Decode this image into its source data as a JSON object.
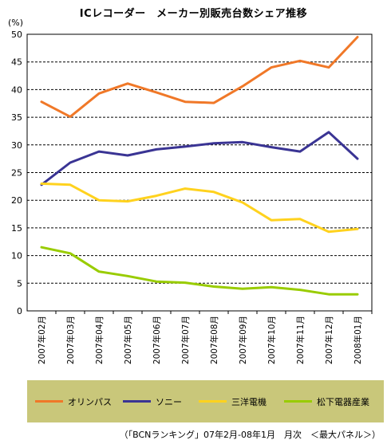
{
  "chart_data": {
    "type": "line",
    "title": "ICレコーダー　メーカー別販売台数シェア推移",
    "ylabel": "(%)",
    "ylim": [
      0,
      50
    ],
    "yticks": [
      0,
      5,
      10,
      15,
      20,
      25,
      30,
      35,
      40,
      45,
      50
    ],
    "grid": true,
    "legend_position": "bottom",
    "categories": [
      "2007年02月",
      "2007年03月",
      "2007年04月",
      "2007年05月",
      "2007年06月",
      "2007年07月",
      "2007年08月",
      "2007年09月",
      "2007年10月",
      "2007年11月",
      "2007年12月",
      "2008年01月"
    ],
    "series": [
      {
        "name": "オリンパス",
        "color": "#f07828",
        "values": [
          37.8,
          35.1,
          39.3,
          41.1,
          39.5,
          37.8,
          37.6,
          40.6,
          44.0,
          45.2,
          44.0,
          49.5
        ]
      },
      {
        "name": "ソニー",
        "color": "#3a3494",
        "values": [
          22.8,
          26.8,
          28.8,
          28.1,
          29.2,
          29.7,
          30.3,
          30.5,
          29.6,
          28.8,
          32.3,
          27.5
        ]
      },
      {
        "name": "三洋電機",
        "color": "#ffd21e",
        "values": [
          23.0,
          22.8,
          20.0,
          19.8,
          20.8,
          22.1,
          21.5,
          19.6,
          16.4,
          16.6,
          14.3,
          14.8
        ]
      },
      {
        "name": "松下電器産業",
        "color": "#99cc00",
        "values": [
          11.5,
          10.4,
          7.1,
          6.3,
          5.3,
          5.1,
          4.4,
          4.0,
          4.3,
          3.8,
          3.0,
          3.0
        ]
      }
    ],
    "source": "（「BCNランキング」07年2月-08年1月　月次　＜最大パネル＞）",
    "background": "#ffffff",
    "legend_background": "#c9c77a"
  }
}
